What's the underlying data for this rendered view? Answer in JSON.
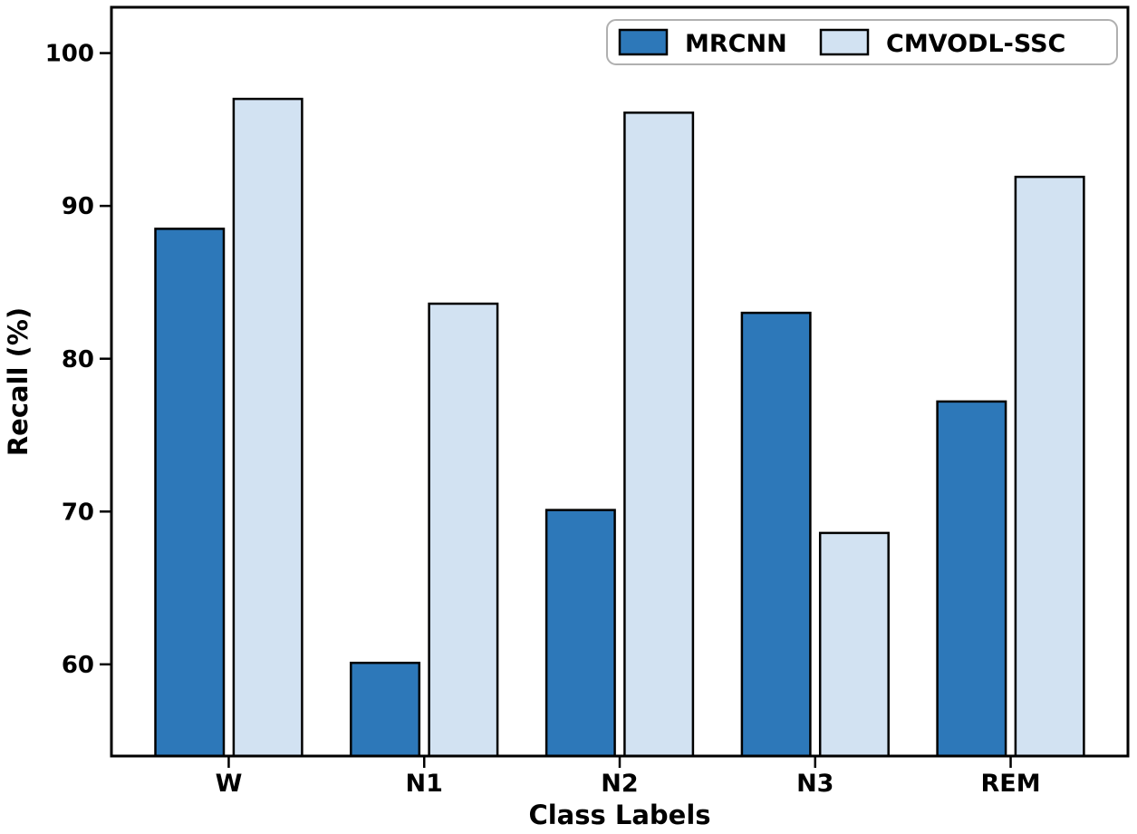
{
  "figure": {
    "background": "#ffffff"
  },
  "chart_data": {
    "type": "bar",
    "title": "",
    "categories": [
      "W",
      "N1",
      "N2",
      "N3",
      "REM"
    ],
    "series": [
      {
        "name": "MRCNN",
        "color": "#2d78b9",
        "values": [
          88.5,
          60.1,
          70.1,
          83.0,
          77.2
        ]
      },
      {
        "name": "CMVODL-SSC",
        "color": "#d2e2f2",
        "values": [
          97.0,
          83.6,
          96.1,
          68.6,
          91.9
        ]
      }
    ],
    "xlabel": "Class Labels",
    "ylabel": "Recall (%)",
    "ylim": [
      54,
      103
    ],
    "yticks": [
      60,
      70,
      80,
      90,
      100
    ],
    "grid": false,
    "bar_edge_color": "#000000",
    "axis_color": "#000000",
    "legend": {
      "position": "upper right",
      "border_color": "#b0b0b0",
      "background": "#ffffff"
    }
  }
}
